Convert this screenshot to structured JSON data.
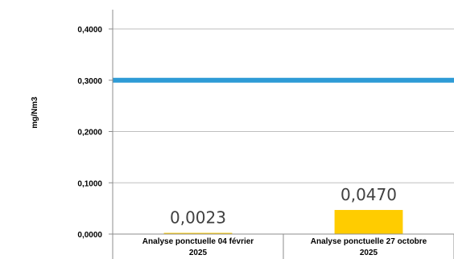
{
  "chart_data": {
    "type": "bar",
    "title": "",
    "xlabel": "",
    "ylabel": "mg/Nm3",
    "ylim": [
      0,
      0.4
    ],
    "yticks": [
      "0,0000",
      "0,1000",
      "0,2000",
      "0,3000",
      "0,4000"
    ],
    "categories": [
      [
        "Analyse ponctuelle 04 février",
        "2025"
      ],
      [
        "Analyse ponctuelle 27 octobre",
        "2025"
      ]
    ],
    "series": [
      {
        "values": [
          0.0023,
          0.047
        ],
        "labels": [
          "0,0023",
          "0,0470"
        ],
        "color": "#ffcc00"
      }
    ],
    "reference_line": {
      "value": 0.3,
      "color": "#2e9bd6"
    },
    "grid": true,
    "legend": "none"
  }
}
